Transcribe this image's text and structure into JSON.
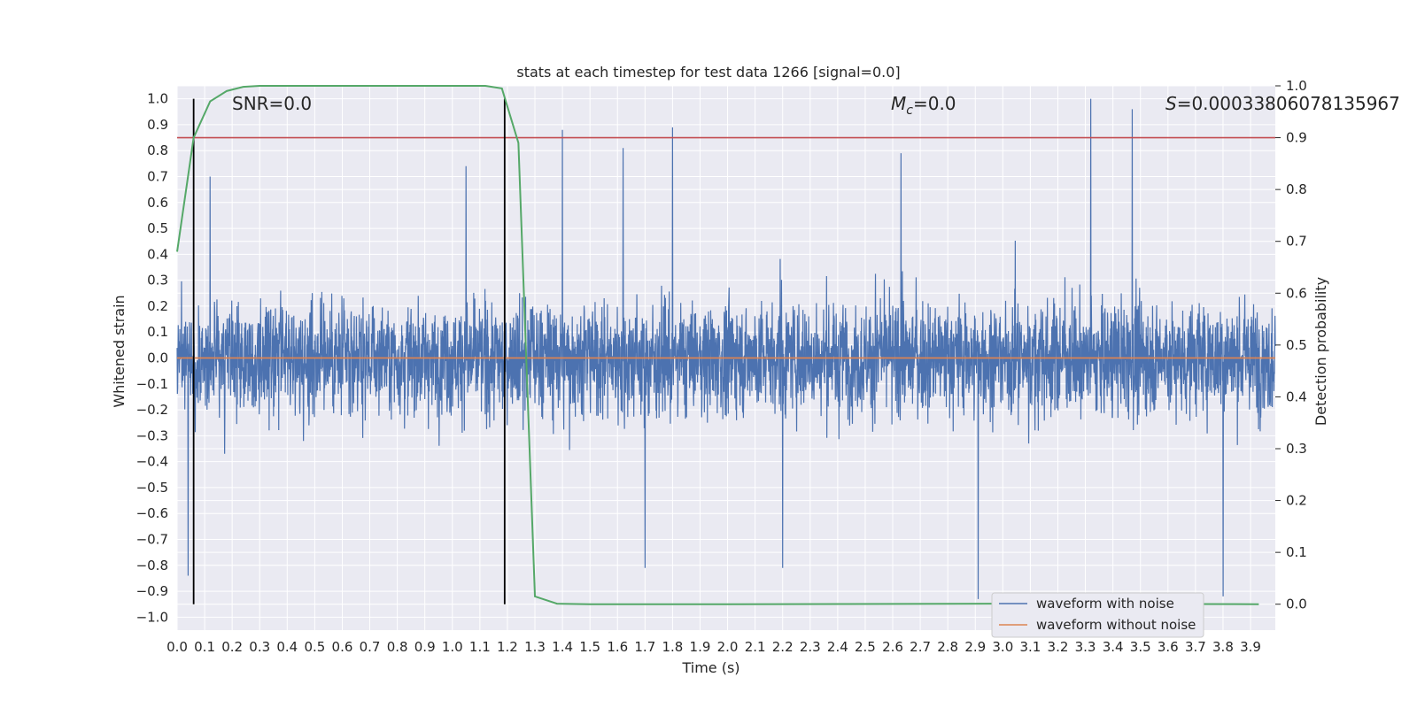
{
  "chart_data": {
    "type": "line",
    "title": "stats at each timestep for test data 1266 [signal=0.0]",
    "xlabel": "Time (s)",
    "ylabel_left": "Whitened strain",
    "ylabel_right": "Detection probability",
    "xlim": [
      0.0,
      3.99
    ],
    "ylim_left": [
      -1.05,
      1.05
    ],
    "ylim_right": [
      -0.05,
      1.0
    ],
    "x_ticks": [
      0.0,
      0.1,
      0.2,
      0.3,
      0.4,
      0.5,
      0.6,
      0.7,
      0.8,
      0.9,
      1.0,
      1.1,
      1.2,
      1.3,
      1.4,
      1.5,
      1.6,
      1.7,
      1.8,
      1.9,
      2.0,
      2.1,
      2.2,
      2.3,
      2.4,
      2.5,
      2.6,
      2.7,
      2.8,
      2.9,
      3.0,
      3.1,
      3.2,
      3.3,
      3.4,
      3.5,
      3.6,
      3.7,
      3.8,
      3.9
    ],
    "y_ticks_left": [
      -1.0,
      -0.9,
      -0.8,
      -0.7,
      -0.6,
      -0.5,
      -0.4,
      -0.3,
      -0.2,
      -0.1,
      0.0,
      0.1,
      0.2,
      0.3,
      0.4,
      0.5,
      0.6,
      0.7,
      0.8,
      0.9,
      1.0
    ],
    "y_ticks_right": [
      0.0,
      0.1,
      0.2,
      0.3,
      0.4,
      0.5,
      0.6,
      0.7,
      0.8,
      0.9,
      1.0
    ],
    "grid": true,
    "legend_position": "bottom-right",
    "annotations": {
      "snr": "SNR=0.0",
      "mc_symbol": "M",
      "mc_sub": "c",
      "mc_value": "=0.0",
      "s_symbol": "S",
      "s_value": "=0.00033806078135967"
    },
    "colors": {
      "background": "#eaeaf2",
      "grid": "#ffffff",
      "noisy": "#4c72b0",
      "clean": "#dd8452",
      "probability": "#55a868",
      "threshold": "#c44e52",
      "markers": "#000000"
    },
    "series": [
      {
        "name": "waveform with noise",
        "kind": "noise",
        "x_range": [
          0.0,
          3.99
        ],
        "amplitude_typical": 0.25,
        "spikes": [
          {
            "x": 0.12,
            "y": 0.7
          },
          {
            "x": 0.04,
            "y": -0.84
          },
          {
            "x": 1.05,
            "y": 0.74
          },
          {
            "x": 1.4,
            "y": 0.88
          },
          {
            "x": 1.8,
            "y": 0.89
          },
          {
            "x": 1.62,
            "y": 0.81
          },
          {
            "x": 2.63,
            "y": 0.79
          },
          {
            "x": 1.7,
            "y": -0.81
          },
          {
            "x": 2.2,
            "y": -0.81
          },
          {
            "x": 2.91,
            "y": -0.93
          },
          {
            "x": 3.32,
            "y": 1.0
          },
          {
            "x": 3.47,
            "y": 0.96
          },
          {
            "x": 3.8,
            "y": -0.92
          }
        ]
      },
      {
        "name": "waveform without noise",
        "kind": "line",
        "x": [
          0.0,
          3.99
        ],
        "y": [
          0.0,
          0.0
        ]
      },
      {
        "name": "detection probability",
        "kind": "line",
        "axis": "right",
        "x": [
          0.0,
          0.06,
          0.12,
          0.18,
          0.24,
          0.3,
          0.5,
          1.0,
          1.12,
          1.18,
          1.24,
          1.3,
          1.38,
          1.5,
          2.0,
          3.0,
          3.93
        ],
        "y": [
          0.68,
          0.9,
          0.97,
          0.99,
          0.998,
          1.0,
          1.0,
          1.0,
          1.0,
          0.995,
          0.89,
          0.015,
          0.001,
          0.0,
          0.0,
          0.001,
          0.0
        ]
      }
    ],
    "threshold_line": {
      "axis": "right",
      "y": 0.9
    },
    "marker_lines": [
      {
        "x": 0.06,
        "y_left": [
          -0.95,
          1.0
        ]
      },
      {
        "x": 1.19,
        "y_left": [
          -0.95,
          1.0
        ]
      }
    ]
  }
}
